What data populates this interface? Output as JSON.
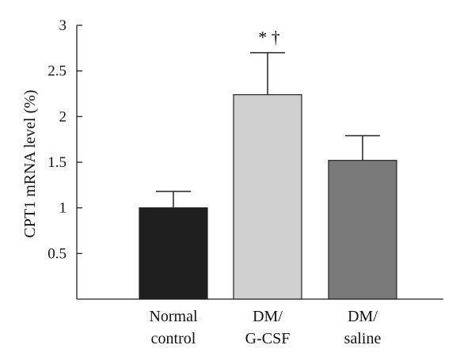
{
  "chart_data": {
    "type": "bar",
    "ylabel": "CPT1 mRNA level (%)",
    "ylim": [
      0,
      3
    ],
    "yticks": [
      0.5,
      1,
      1.5,
      2,
      2.5,
      3
    ],
    "ytick_labels": [
      "0.5",
      "1",
      "1.5",
      "2",
      "2.5",
      "3"
    ],
    "grid": false,
    "legend": "none",
    "categories": [
      [
        "Normal",
        "control"
      ],
      [
        "DM/",
        "G-CSF"
      ],
      [
        "DM/",
        "saline"
      ]
    ],
    "values": [
      1.0,
      2.24,
      1.52
    ],
    "error": [
      0.18,
      0.46,
      0.27
    ],
    "colors": [
      "#1e1e1e",
      "#cfcfcf",
      "#7a7a7a"
    ],
    "edge_color": "#222222",
    "annotations": [
      {
        "category_index": 1,
        "text": "*  †"
      }
    ]
  }
}
